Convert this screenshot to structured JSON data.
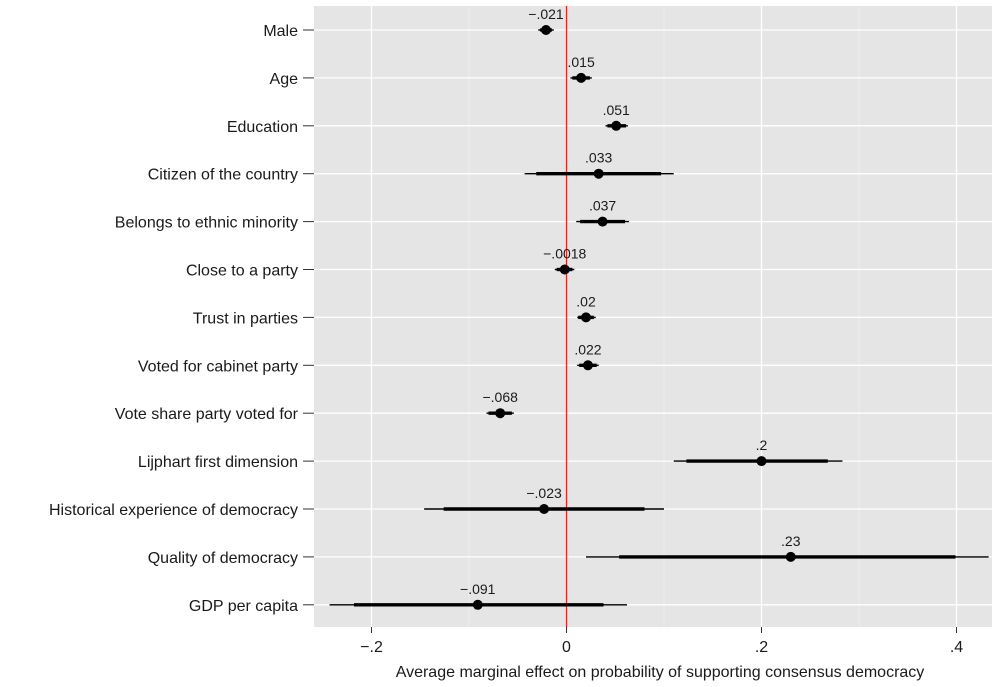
{
  "chart_data": {
    "type": "scatter",
    "subtype": "coefficient-plot",
    "title": "",
    "xlabel": "Average marginal effect on probability of supporting consensus democracy",
    "ylabel": "",
    "xlim": [
      -0.25,
      0.44
    ],
    "xticks": [
      -0.2,
      0,
      0.2,
      0.4
    ],
    "xtick_labels": [
      "−.2",
      "0",
      ".2",
      ".4"
    ],
    "grid": true,
    "reference_line": {
      "x": 0,
      "color": "#e8261e"
    },
    "panel_color": "#e5e5e5",
    "point_color": "#000000",
    "points": [
      {
        "category": "Male",
        "estimate": -0.021,
        "label": "−.021",
        "ci95": [
          -0.029,
          -0.013
        ],
        "ci90": [
          -0.027,
          -0.015
        ]
      },
      {
        "category": "Age",
        "estimate": 0.015,
        "label": ".015",
        "ci95": [
          0.004,
          0.026
        ],
        "ci90": [
          0.006,
          0.024
        ]
      },
      {
        "category": "Education",
        "estimate": 0.051,
        "label": ".051",
        "ci95": [
          0.04,
          0.063
        ],
        "ci90": [
          0.042,
          0.061
        ]
      },
      {
        "category": "Citizen of the country",
        "estimate": 0.033,
        "label": ".033",
        "ci95": [
          -0.043,
          0.11
        ],
        "ci90": [
          -0.031,
          0.097
        ]
      },
      {
        "category": "Belongs to ethnic minority",
        "estimate": 0.037,
        "label": ".037",
        "ci95": [
          0.01,
          0.064
        ],
        "ci90": [
          0.014,
          0.06
        ]
      },
      {
        "category": "Close to a party",
        "estimate": -0.0018,
        "label": "−.0018",
        "ci95": [
          -0.012,
          0.008
        ],
        "ci90": [
          -0.01,
          0.006
        ]
      },
      {
        "category": "Trust in parties",
        "estimate": 0.02,
        "label": ".02",
        "ci95": [
          0.011,
          0.03
        ],
        "ci90": [
          0.012,
          0.028
        ]
      },
      {
        "category": "Voted for cabinet party",
        "estimate": 0.022,
        "label": ".022",
        "ci95": [
          0.011,
          0.033
        ],
        "ci90": [
          0.013,
          0.031
        ]
      },
      {
        "category": "Vote share party voted for",
        "estimate": -0.068,
        "label": "−.068",
        "ci95": [
          -0.082,
          -0.054
        ],
        "ci90": [
          -0.08,
          -0.056
        ]
      },
      {
        "category": "Lijphart first dimension",
        "estimate": 0.2,
        "label": ".2",
        "ci95": [
          0.11,
          0.283
        ],
        "ci90": [
          0.123,
          0.268
        ]
      },
      {
        "category": "Historical experience of democracy",
        "estimate": -0.023,
        "label": "−.023",
        "ci95": [
          -0.146,
          0.1
        ],
        "ci90": [
          -0.126,
          0.08
        ]
      },
      {
        "category": "Quality of democracy",
        "estimate": 0.23,
        "label": ".23",
        "ci95": [
          0.02,
          0.433
        ],
        "ci90": [
          0.054,
          0.399
        ]
      },
      {
        "category": "GDP per capita",
        "estimate": -0.091,
        "label": "−.091",
        "ci95": [
          -0.243,
          0.062
        ],
        "ci90": [
          -0.218,
          0.038
        ]
      }
    ]
  }
}
